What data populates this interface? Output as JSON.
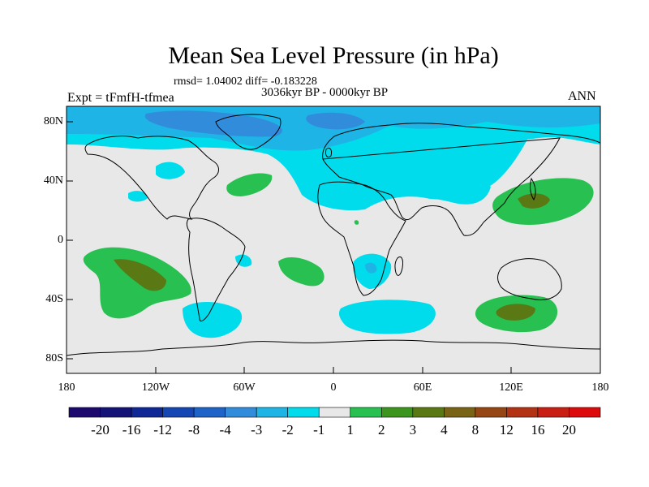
{
  "title": "Mean Sea Level Pressure (in hPa)",
  "stats": "rmsd= 1.04002 diff= -0.183228",
  "period": "3036kyr BP - 0000kyr BP",
  "experiment": "Expt = tFmfH-tfmea",
  "season": "ANN",
  "lat_labels": [
    "80N",
    "40N",
    "0",
    "40S",
    "80S"
  ],
  "lon_labels": [
    "180",
    "120W",
    "60W",
    "0",
    "60E",
    "120E",
    "180"
  ],
  "colorbar": {
    "colors": [
      "#1e0a6e",
      "#141478",
      "#0f2896",
      "#1446b4",
      "#1e64c8",
      "#328cdc",
      "#1eb4e6",
      "#00dceb",
      "#e8e8e8",
      "#28c050",
      "#3c961e",
      "#5a7814",
      "#786414",
      "#964614",
      "#b43214",
      "#c81e14",
      "#dc0a0a"
    ],
    "labels": [
      "-20",
      "-16",
      "-12",
      "-8",
      "-4",
      "-3",
      "-2",
      "-1",
      "1",
      "2",
      "3",
      "4",
      "8",
      "12",
      "16",
      "20"
    ]
  }
}
